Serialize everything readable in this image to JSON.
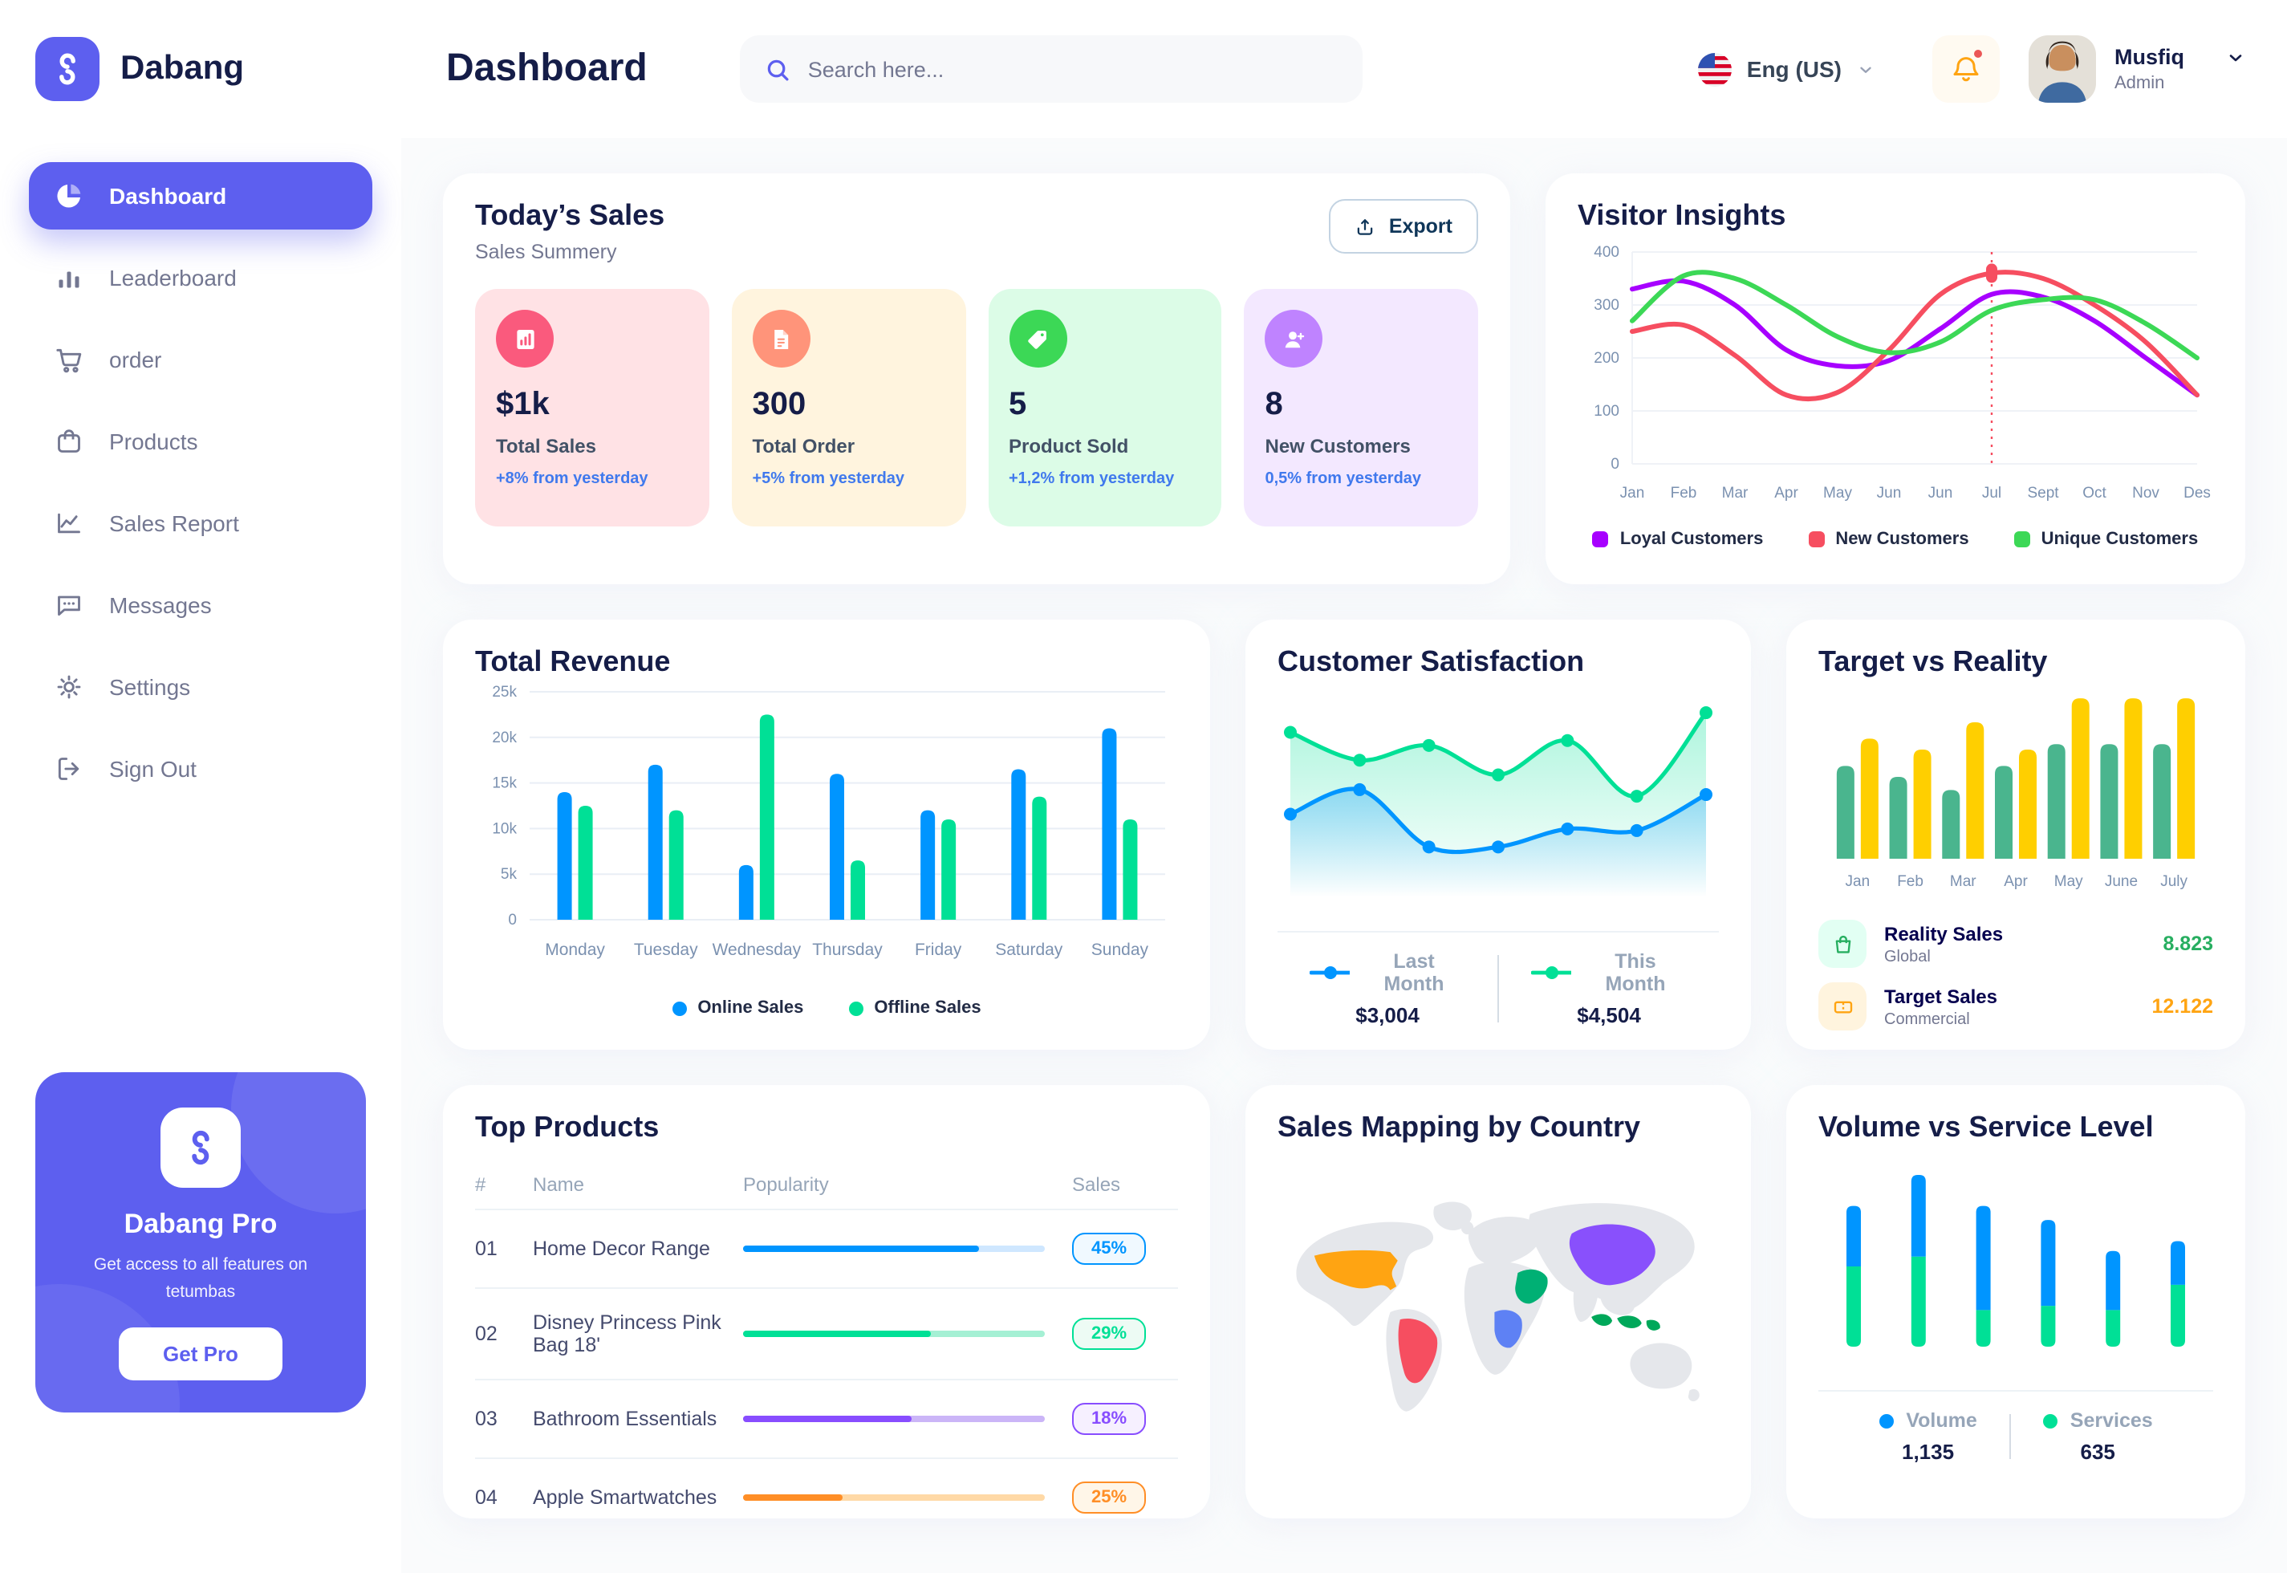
{
  "brand": {
    "name": "Dabang",
    "color": "#5D5FEF"
  },
  "header": {
    "title": "Dashboard",
    "search": {
      "placeholder": "Search here...",
      "icon": "search-icon"
    },
    "language": {
      "label": "Eng (US)",
      "icon": "us-flag-icon"
    },
    "notifications": {
      "icon": "bell-icon",
      "has_unread": true
    },
    "user": {
      "name": "Musfiq",
      "role": "Admin"
    }
  },
  "sidebar": {
    "items": [
      {
        "label": "Dashboard",
        "icon": "pie-chart-icon",
        "active": true
      },
      {
        "label": "Leaderboard",
        "icon": "bar-chart-icon",
        "active": false
      },
      {
        "label": "order",
        "icon": "cart-icon",
        "active": false
      },
      {
        "label": "Products",
        "icon": "bag-icon",
        "active": false
      },
      {
        "label": "Sales Report",
        "icon": "line-chart-icon",
        "active": false
      },
      {
        "label": "Messages",
        "icon": "message-icon",
        "active": false
      },
      {
        "label": "Settings",
        "icon": "gear-icon",
        "active": false
      },
      {
        "label": "Sign Out",
        "icon": "sign-out-icon",
        "active": false
      }
    ],
    "pro_card": {
      "title": "Dabang Pro",
      "subtitle": "Get access to all features on tetumbas",
      "button_label": "Get Pro"
    }
  },
  "today_sales": {
    "title": "Today’s Sales",
    "subtitle": "Sales Summery",
    "export_label": "Export",
    "cards": [
      {
        "value": "$1k",
        "label": "Total Sales",
        "delta": "+8% from yesterday",
        "bg": "#FFE2E5",
        "icon_bg": "#FA5A7D",
        "icon": "bar-chart-icon"
      },
      {
        "value": "300",
        "label": "Total Order",
        "delta": "+5% from yesterday",
        "bg": "#FFF4DE",
        "icon_bg": "#FF947A",
        "icon": "receipt-icon"
      },
      {
        "value": "5",
        "label": "Product Sold",
        "delta": "+1,2% from yesterday",
        "bg": "#DCFCE7",
        "icon_bg": "#3CD856",
        "icon": "tag-icon"
      },
      {
        "value": "8",
        "label": "New Customers",
        "delta": "0,5% from yesterday",
        "bg": "#F3E8FF",
        "icon_bg": "#BF83FF",
        "icon": "user-plus-icon"
      }
    ]
  },
  "top_products": {
    "title": "Top Products",
    "columns": [
      "#",
      "Name",
      "Popularity",
      "Sales"
    ],
    "rows": [
      {
        "num": "01",
        "name": "Home Decor Range",
        "popularity": 78,
        "sales": "45%",
        "color": "#0095FF",
        "track": "#CFE7FF",
        "badge_bg": "#F0F9FF"
      },
      {
        "num": "02",
        "name": "Disney Princess Pink Bag 18'",
        "popularity": 62,
        "sales": "29%",
        "color": "#00E096",
        "track": "#A5F0D4",
        "badge_bg": "#EDFBF4"
      },
      {
        "num": "03",
        "name": "Bathroom Essentials",
        "popularity": 56,
        "sales": "18%",
        "color": "#884DFF",
        "track": "#CBB5F7",
        "badge_bg": "#F6F0FF"
      },
      {
        "num": "04",
        "name": "Apple Smartwatches",
        "popularity": 33,
        "sales": "25%",
        "color": "#FF8E26",
        "track": "#FFD9A6",
        "badge_bg": "#FFF6E8"
      }
    ]
  },
  "sales_mapping": {
    "title": "Sales Mapping by Country",
    "countries": [
      {
        "name": "United States",
        "color": "#FFA412"
      },
      {
        "name": "Brazil",
        "color": "#F64E60"
      },
      {
        "name": "Saudi Arabia",
        "color": "#00B074"
      },
      {
        "name": "DR Congo",
        "color": "#5E81F4"
      },
      {
        "name": "China",
        "color": "#8950FC"
      },
      {
        "name": "Indonesia",
        "color": "#00A85A"
      }
    ]
  },
  "chart_data": [
    {
      "id": "visitor_insights",
      "type": "line",
      "title": "Visitor Insights",
      "x": [
        "Jan",
        "Feb",
        "Mar",
        "Apr",
        "May",
        "Jun",
        "Jun",
        "Jul",
        "Sept",
        "Oct",
        "Nov",
        "Des"
      ],
      "ylim": [
        0,
        400
      ],
      "yticks": [
        0,
        100,
        200,
        300,
        400
      ],
      "grid": true,
      "legend_position": "bottom",
      "series": [
        {
          "name": "Loyal Customers",
          "color": "#A700FF",
          "values": [
            330,
            345,
            300,
            215,
            185,
            195,
            255,
            320,
            315,
            270,
            200,
            130
          ]
        },
        {
          "name": "New Customers",
          "color": "#F64E60",
          "values": [
            250,
            262,
            205,
            130,
            135,
            215,
            320,
            360,
            350,
            300,
            230,
            130
          ]
        },
        {
          "name": "Unique Customers",
          "color": "#3CD856",
          "values": [
            270,
            355,
            350,
            300,
            240,
            210,
            230,
            290,
            310,
            310,
            265,
            200
          ]
        }
      ],
      "highlight": {
        "series": "New Customers",
        "index": 7,
        "x_label": "Jul",
        "value": 360
      }
    },
    {
      "id": "total_revenue",
      "type": "bar",
      "title": "Total Revenue",
      "categories": [
        "Monday",
        "Tuesday",
        "Wednesday",
        "Thursday",
        "Friday",
        "Saturday",
        "Sunday"
      ],
      "ylim": [
        0,
        25
      ],
      "yticks": [
        0,
        5,
        10,
        15,
        20,
        25
      ],
      "ytick_labels": [
        "0",
        "5k",
        "10k",
        "15k",
        "20k",
        "25k"
      ],
      "grid": true,
      "legend_position": "bottom",
      "series": [
        {
          "name": "Online Sales",
          "color": "#0095FF",
          "values": [
            14,
            17,
            6,
            16,
            12,
            16.5,
            21
          ]
        },
        {
          "name": "Offline Sales",
          "color": "#00E096",
          "values": [
            12.5,
            12,
            22.5,
            6.5,
            11,
            13.5,
            11
          ]
        }
      ]
    },
    {
      "id": "customer_satisfaction",
      "type": "area",
      "title": "Customer Satisfaction",
      "ylim": [
        0,
        100
      ],
      "grid": false,
      "legend_position": "bottom",
      "series": [
        {
          "name": "Last Month",
          "color": "#0095FF",
          "total": "$3,004",
          "values": [
            37,
            52,
            17,
            17,
            28,
            27,
            49
          ]
        },
        {
          "name": "This Month",
          "color": "#00E096",
          "total": "$4,504",
          "values": [
            87,
            70,
            79,
            61,
            82,
            48,
            99
          ]
        }
      ]
    },
    {
      "id": "target_vs_reality",
      "type": "bar",
      "title": "Target vs Reality",
      "categories": [
        "Jan",
        "Feb",
        "Mar",
        "Apr",
        "May",
        "June",
        "July"
      ],
      "ylim": [
        0,
        15
      ],
      "grid": false,
      "legend_position": "bottom",
      "series": [
        {
          "name": "Reality Sales",
          "subtitle": "Global",
          "color": "#4AB58E",
          "icon": "shopping-bag-icon",
          "icon_bg": "#E2FFF3",
          "value_label": "8.823",
          "value_color": "#27AE60",
          "values": [
            8.5,
            7.5,
            6.3,
            8.5,
            10.5,
            10.5,
            10.5
          ]
        },
        {
          "name": "Target Sales",
          "subtitle": "Commercial",
          "color": "#FFCF00",
          "icon": "ticket-icon",
          "icon_bg": "#FFF4DE",
          "value_label": "12.122",
          "value_color": "#FFA412",
          "values": [
            11,
            10,
            12.5,
            10,
            14.7,
            14.7,
            14.7
          ]
        }
      ]
    },
    {
      "id": "volume_vs_service",
      "type": "stacked-bar",
      "title": "Volume vs Service Level",
      "ylim": [
        0,
        130
      ],
      "grid": false,
      "legend_position": "bottom",
      "series": [
        {
          "name": "Volume",
          "color": "#0095FF",
          "total": "1,135",
          "values": [
            43,
            58,
            74,
            61,
            42,
            31
          ]
        },
        {
          "name": "Services",
          "color": "#00E096",
          "total": "635",
          "values": [
            57,
            64,
            26,
            29,
            26,
            44
          ]
        }
      ]
    }
  ]
}
